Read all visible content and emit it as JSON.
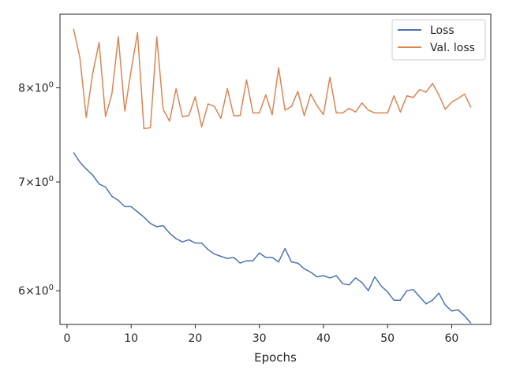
{
  "chart_data": {
    "type": "line",
    "xlabel": "Epochs",
    "ylabel": "",
    "yscale": "log",
    "xlim": [
      -1.1,
      66.1
    ],
    "ylim": [
      5.72,
      8.88
    ],
    "xticks": [
      0,
      10,
      20,
      30,
      40,
      50,
      60
    ],
    "yticks": [
      {
        "value": 6,
        "base": "6",
        "exp": "0"
      },
      {
        "value": 7,
        "base": "7",
        "exp": "0"
      },
      {
        "value": 8,
        "base": "8",
        "exp": "0"
      }
    ],
    "grid": false,
    "legend_position": "top-right",
    "x": [
      1,
      2,
      3,
      4,
      5,
      6,
      7,
      8,
      9,
      10,
      11,
      12,
      13,
      14,
      15,
      16,
      17,
      18,
      19,
      20,
      21,
      22,
      23,
      24,
      25,
      26,
      27,
      28,
      29,
      30,
      31,
      32,
      33,
      34,
      35,
      36,
      37,
      38,
      39,
      40,
      41,
      42,
      43,
      44,
      45,
      46,
      47,
      48,
      49,
      50,
      51,
      52,
      53,
      54,
      55,
      56,
      57,
      58,
      59,
      60,
      61,
      62,
      63
    ],
    "series": [
      {
        "name": "Loss",
        "color": "#4c72b0",
        "values": [
          7.3,
          7.2,
          7.13,
          7.07,
          6.98,
          6.95,
          6.86,
          6.82,
          6.76,
          6.76,
          6.71,
          6.66,
          6.6,
          6.57,
          6.58,
          6.51,
          6.46,
          6.43,
          6.45,
          6.42,
          6.42,
          6.36,
          6.32,
          6.3,
          6.28,
          6.29,
          6.24,
          6.26,
          6.26,
          6.33,
          6.29,
          6.29,
          6.25,
          6.37,
          6.25,
          6.24,
          6.19,
          6.16,
          6.12,
          6.13,
          6.11,
          6.13,
          6.06,
          6.05,
          6.11,
          6.07,
          6.0,
          6.12,
          6.04,
          5.99,
          5.92,
          5.92,
          6.0,
          6.01,
          5.95,
          5.89,
          5.92,
          5.98,
          5.88,
          5.83,
          5.84,
          5.79,
          5.73
        ]
      },
      {
        "name": "Val. loss",
        "color": "#dd8452",
        "values": [
          8.7,
          8.35,
          7.67,
          8.16,
          8.53,
          7.68,
          7.93,
          8.6,
          7.74,
          8.2,
          8.65,
          7.55,
          7.56,
          8.6,
          7.76,
          7.63,
          7.99,
          7.68,
          7.69,
          7.9,
          7.57,
          7.82,
          7.79,
          7.66,
          7.99,
          7.69,
          7.69,
          8.09,
          7.72,
          7.72,
          7.92,
          7.7,
          8.23,
          7.75,
          7.79,
          7.96,
          7.69,
          7.93,
          7.8,
          7.7,
          8.12,
          7.72,
          7.72,
          7.77,
          7.73,
          7.83,
          7.75,
          7.72,
          7.72,
          7.72,
          7.91,
          7.73,
          7.91,
          7.89,
          7.98,
          7.95,
          8.05,
          7.92,
          7.76,
          7.84,
          7.88,
          7.93,
          7.78
        ]
      }
    ]
  }
}
